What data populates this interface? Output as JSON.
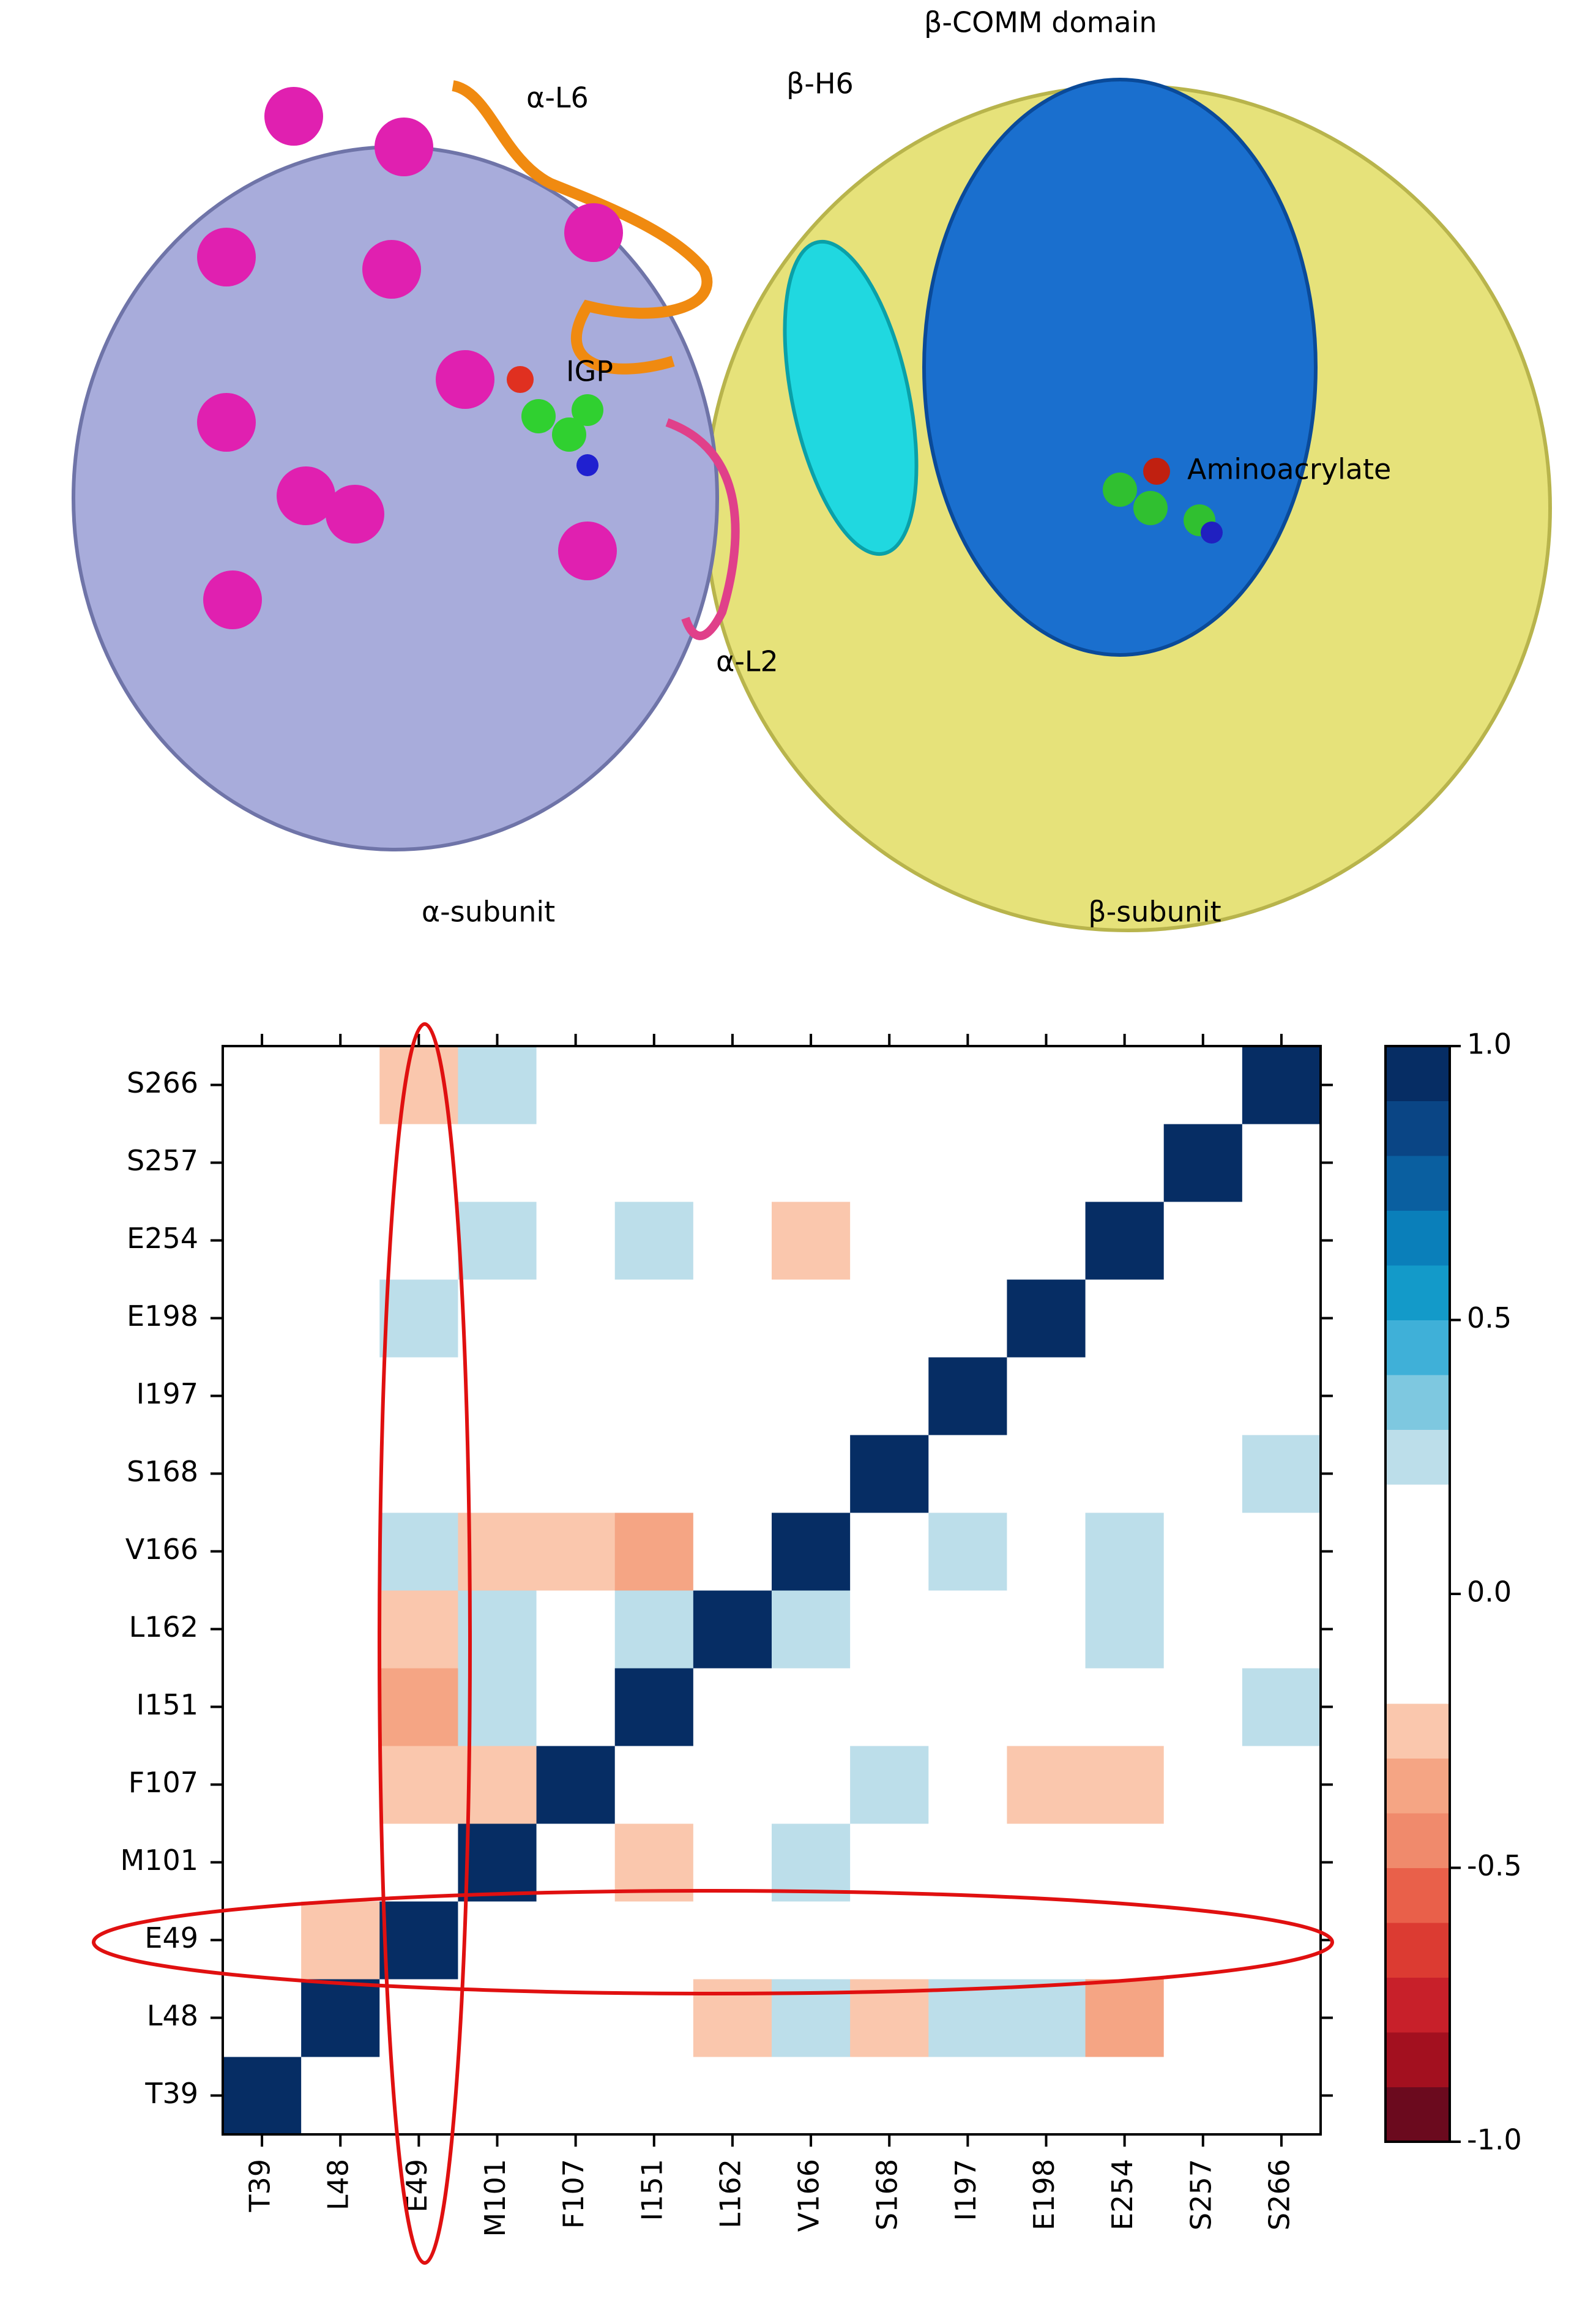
{
  "image_labels": [
    "β-COMM domain",
    "α-L6",
    "β-H6",
    "IGP",
    "Aminoacrylate",
    "α-L2",
    "α-subunit",
    "β-subunit"
  ],
  "chart_data": {
    "type": "heatmap",
    "x": [
      "T39",
      "L48",
      "E49",
      "M101",
      "F107",
      "I151",
      "L162",
      "V166",
      "S168",
      "I197",
      "E198",
      "E254",
      "S257",
      "S266"
    ],
    "y": [
      "T39",
      "L48",
      "E49",
      "M101",
      "F107",
      "I151",
      "L162",
      "V166",
      "S168",
      "I197",
      "E198",
      "E254",
      "S257",
      "S266"
    ],
    "values": [
      [
        1,
        0,
        0,
        0,
        0,
        0,
        0,
        0,
        0,
        0,
        0,
        0,
        0,
        0
      ],
      [
        0,
        1,
        0,
        0,
        0,
        0,
        -0.25,
        0.25,
        -0.25,
        0.25,
        0.25,
        -0.35,
        0,
        0
      ],
      [
        0,
        -0.25,
        1,
        0,
        0,
        0,
        0,
        0,
        0,
        0,
        0,
        0,
        0,
        0
      ],
      [
        0,
        0,
        0,
        1,
        0,
        -0.25,
        0,
        0.25,
        0,
        0,
        0,
        0,
        0,
        0
      ],
      [
        0,
        0,
        -0.25,
        -0.25,
        1,
        0,
        0,
        0,
        0.25,
        0,
        -0.25,
        -0.25,
        0,
        0
      ],
      [
        0,
        0,
        -0.35,
        0.25,
        0,
        1,
        0,
        0,
        0,
        0,
        0,
        0,
        0,
        0.25
      ],
      [
        0,
        0,
        -0.25,
        0.25,
        0,
        0.25,
        1,
        0.25,
        0,
        0,
        0,
        0.25,
        0,
        0
      ],
      [
        0,
        0,
        0.25,
        -0.25,
        -0.25,
        -0.35,
        0,
        1,
        0,
        0.25,
        0,
        0.25,
        0,
        0
      ],
      [
        0,
        0,
        0,
        0,
        0,
        0,
        0,
        0,
        1,
        0,
        0,
        0,
        0,
        0.25
      ],
      [
        0,
        0,
        0,
        0,
        0,
        0,
        0,
        0,
        0,
        1,
        0,
        0,
        0,
        0
      ],
      [
        0,
        0,
        0.25,
        0,
        0,
        0,
        0,
        0,
        0,
        0,
        1,
        0,
        0,
        0
      ],
      [
        0,
        0,
        0,
        0.25,
        0,
        0.25,
        0,
        -0.25,
        0,
        0,
        0,
        1,
        0,
        0
      ],
      [
        0,
        0,
        0,
        0,
        0,
        0,
        0,
        0,
        0,
        0,
        0,
        0,
        1,
        0
      ],
      [
        0,
        0,
        -0.25,
        0.25,
        0,
        0,
        0,
        0,
        0,
        0,
        0,
        0,
        0,
        1
      ]
    ],
    "clim": [
      -1,
      1
    ],
    "cticks": [
      {
        "value": 1,
        "label": "1.0"
      },
      0.5,
      {
        "value": 0,
        "label": "0.0"
      },
      -0.5,
      {
        "value": -1,
        "label": "-1.0"
      }
    ],
    "colors": [
      "#6b0a1e",
      "#a3101f",
      "#c8202a",
      "#dc3b32",
      "#e9604a",
      "#f08a6c",
      "#f5a584",
      "#fac7ad",
      "#ffffff",
      "#ffffff",
      "#ffffff",
      "#ffffff",
      "#bcdeea",
      "#7ec8e0",
      "#3fb0d8",
      "#139ac9",
      "#0a7fba",
      "#0a5fa0",
      "#0a4585",
      "#062d64"
    ]
  }
}
